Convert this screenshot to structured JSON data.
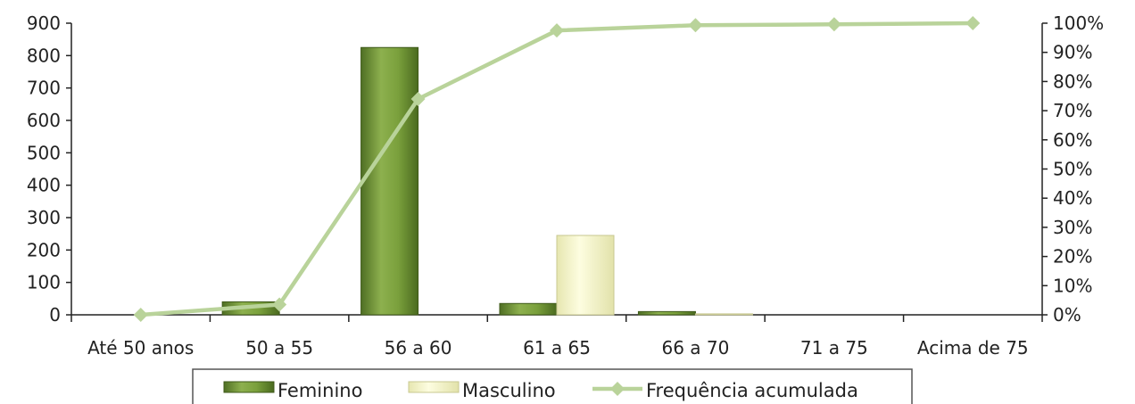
{
  "chart_data": {
    "type": "bar",
    "categories": [
      "Até 50 anos",
      "50 a 55",
      "56 a 60",
      "61 a 65",
      "66 a 70",
      "71 a 75",
      "Acima de 75"
    ],
    "series": [
      {
        "name": "Feminino",
        "type": "bar",
        "axis": "left",
        "values": [
          0,
          40,
          825,
          35,
          10,
          0,
          0
        ],
        "color": "#6f9338"
      },
      {
        "name": "Masculino",
        "type": "bar",
        "axis": "left",
        "values": [
          0,
          0,
          0,
          245,
          3,
          0,
          0
        ],
        "color": "#fbfbd0"
      },
      {
        "name": "Frequência acumulada",
        "type": "line",
        "axis": "right",
        "values": [
          0,
          3.5,
          74,
          97.5,
          99.3,
          99.6,
          100
        ],
        "color": "#b9d39a"
      }
    ],
    "y_left": {
      "ylim": [
        0,
        900
      ],
      "ticks": [
        "0",
        "100",
        "200",
        "300",
        "400",
        "500",
        "600",
        "700",
        "800",
        "900"
      ]
    },
    "y_right": {
      "ylim": [
        0,
        100
      ],
      "ticks": [
        "0%",
        "10%",
        "20%",
        "30%",
        "40%",
        "50%",
        "60%",
        "70%",
        "80%",
        "90%",
        "100%"
      ]
    },
    "legend": {
      "position": "bottom",
      "entries": [
        "Feminino",
        "Masculino",
        "Frequência acumulada"
      ]
    },
    "grid": false
  }
}
